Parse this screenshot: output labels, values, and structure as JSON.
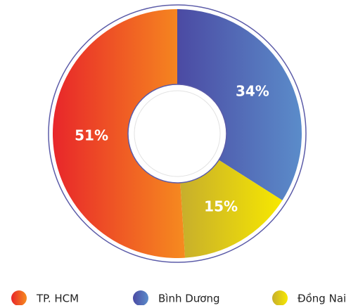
{
  "chart_data": {
    "type": "donut",
    "categories": [
      "TP. HCM",
      "Bình Dương",
      "Đồng Nai"
    ],
    "values": [
      51,
      34,
      15
    ],
    "value_labels": [
      "51%",
      "34%",
      "15%"
    ],
    "colors": [
      [
        "#e8262a",
        "#f68b1f"
      ],
      [
        "#4b4aa3",
        "#5b8cca"
      ],
      [
        "#c7ae2c",
        "#f7e800"
      ]
    ],
    "legend": "bottom"
  }
}
